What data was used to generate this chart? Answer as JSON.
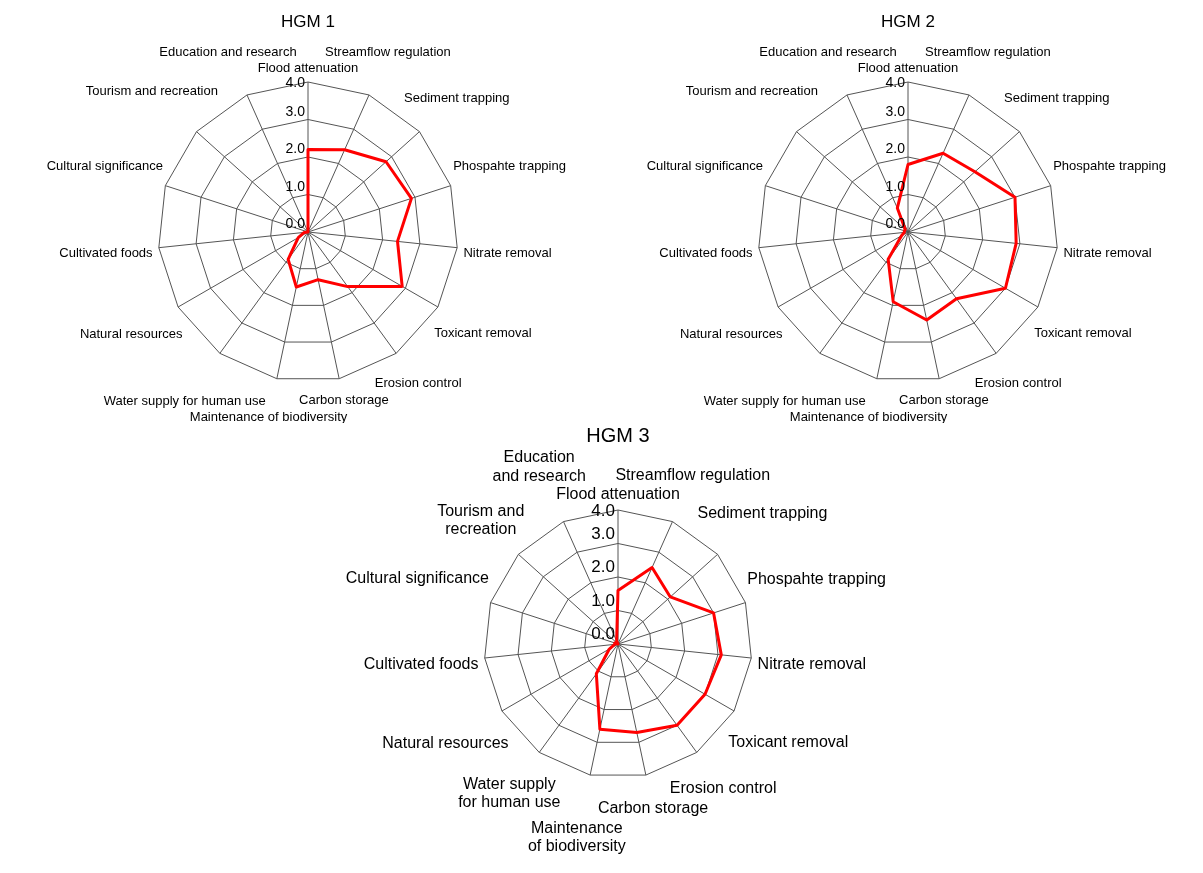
{
  "chart_data": [
    {
      "type": "radar",
      "title": "HGM 1",
      "categories": [
        "Flood attenuation",
        "Streamflow regulation",
        "Sediment trapping",
        "Phospahte trapping",
        "Nitrate removal",
        "Toxicant removal",
        "Erosion control",
        "Carbon storage",
        "Maintenance of biodiversity",
        "Water supply for human use",
        "Natural resources",
        "Cultivated foods",
        "Cultural significance",
        "Tourism and recreation",
        "Education and research"
      ],
      "series": [
        {
          "color": "#ff0000",
          "values": [
            2.2,
            2.4,
            2.8,
            2.9,
            2.4,
            2.9,
            1.8,
            1.3,
            1.5,
            0.9,
            0.3,
            0.1,
            0,
            0,
            0
          ]
        }
      ],
      "ylim": [
        0,
        4
      ],
      "yticks": [
        {
          "value": 0,
          "label": "0.0"
        },
        {
          "value": 1,
          "label": "1.0"
        },
        {
          "value": 2,
          "label": "2.0"
        },
        {
          "value": 3,
          "label": "3.0"
        },
        {
          "value": 4,
          "label": "4.0"
        }
      ],
      "grid": true,
      "legend": false,
      "marker": "none"
    },
    {
      "type": "radar",
      "title": "HGM 2",
      "categories": [
        "Flood attenuation",
        "Streamflow regulation",
        "Sediment trapping",
        "Phospahte trapping",
        "Nitrate removal",
        "Toxicant removal",
        "Erosion control",
        "Carbon storage",
        "Maintenance of biodiversity",
        "Water supply for human use",
        "Natural resources",
        "Cultivated foods",
        "Cultural significance",
        "Tourism and recreation",
        "Education and research"
      ],
      "series": [
        {
          "color": "#ff0000",
          "values": [
            1.8,
            2.3,
            2.4,
            3.0,
            2.9,
            3.0,
            2.2,
            2.4,
            1.9,
            0.9,
            0.2,
            0.1,
            0.1,
            0.1,
            0.7
          ]
        }
      ],
      "ylim": [
        0,
        4
      ],
      "yticks": [
        {
          "value": 0,
          "label": "0.0"
        },
        {
          "value": 1,
          "label": "1.0"
        },
        {
          "value": 2,
          "label": "2.0"
        },
        {
          "value": 3,
          "label": "3.0"
        },
        {
          "value": 4,
          "label": "4.0"
        }
      ],
      "grid": true,
      "legend": false,
      "marker": "none"
    },
    {
      "type": "radar",
      "title": "HGM 3",
      "categories": [
        "Flood attenuation",
        "Streamflow regulation",
        "Sediment trapping",
        "Phospahte trapping",
        "Nitrate removal",
        "Toxicant removal",
        "Erosion control",
        "Carbon storage",
        "Maintenance of biodiversity",
        "Water supply for human use",
        "Natural resources",
        "Cultivated foods",
        "Cultural significance",
        "Tourism and recreation",
        "Education and research"
      ],
      "series": [
        {
          "color": "#ff0000",
          "values": [
            1.6,
            2.5,
            2.1,
            3.0,
            3.1,
            3.0,
            3.0,
            2.7,
            2.6,
            1.1,
            0.3,
            0.1,
            0.1,
            0,
            0.1
          ]
        }
      ],
      "ylim": [
        0,
        4
      ],
      "yticks": [
        {
          "value": 0,
          "label": "0.0"
        },
        {
          "value": 1,
          "label": "1.0"
        },
        {
          "value": 2,
          "label": "2.0"
        },
        {
          "value": 3,
          "label": "3.0"
        },
        {
          "value": 4,
          "label": "4.0"
        }
      ],
      "grid": true,
      "legend": false,
      "marker": "none"
    }
  ]
}
